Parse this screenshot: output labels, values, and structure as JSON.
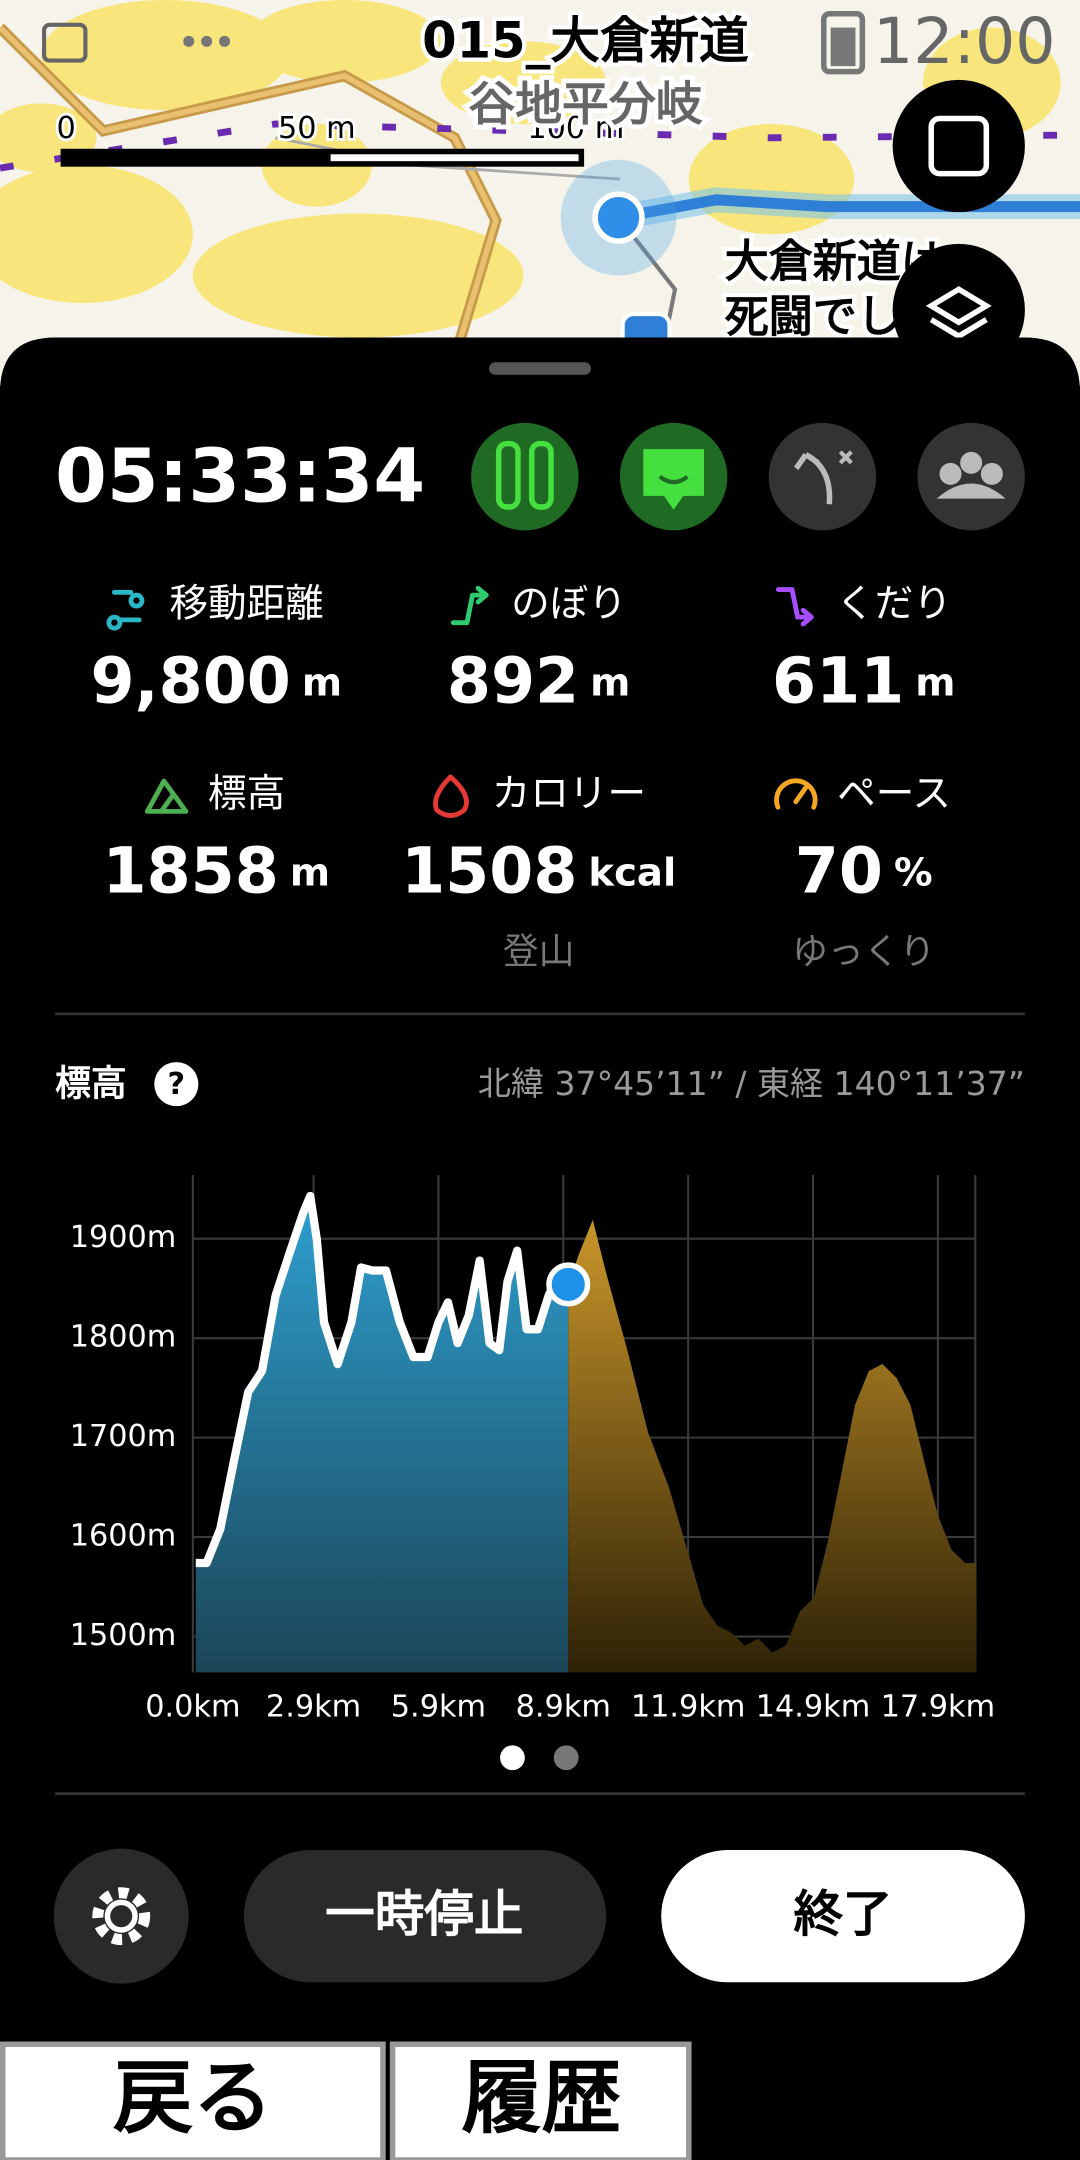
{
  "status_bar": {
    "time": "12:00"
  },
  "map": {
    "title": "015_大倉新道",
    "place_label": "谷地平分岐",
    "note_lines": [
      "大倉新道は",
      "死闘でし"
    ],
    "scale_labels": [
      "0",
      "50 m",
      "100 m"
    ]
  },
  "tracking": {
    "elapsed": "05:33:34",
    "stats": [
      {
        "label": "移動距離",
        "value": "9,800",
        "unit": "m"
      },
      {
        "label": "のぼり",
        "value": "892",
        "unit": "m"
      },
      {
        "label": "くだり",
        "value": "611",
        "unit": "m"
      },
      {
        "label": "標高",
        "value": "1858",
        "unit": "m"
      },
      {
        "label": "カロリー",
        "value": "1508",
        "unit": "kcal",
        "sub": "登山"
      },
      {
        "label": "ペース",
        "value": "70",
        "unit": "%",
        "sub": "ゆっくり"
      }
    ]
  },
  "chart_header": {
    "help": "?",
    "coordinates": "北緯 37°45’11” / 東経 140°11’37”"
  },
  "chart_data": {
    "type": "area",
    "title": "標高",
    "xlim": [
      0,
      18.8
    ],
    "ylim": [
      1464,
      1964
    ],
    "xticks": [
      {
        "value": 0,
        "label": "0.0km"
      },
      {
        "value": 2.9,
        "label": "2.9km"
      },
      {
        "value": 5.9,
        "label": "5.9km"
      },
      {
        "value": 8.9,
        "label": "8.9km"
      },
      {
        "value": 11.9,
        "label": "11.9km"
      },
      {
        "value": 14.9,
        "label": "14.9km"
      },
      {
        "value": 17.9,
        "label": "17.9km"
      }
    ],
    "yticks": [
      {
        "value": 1500,
        "label": "1500m"
      },
      {
        "value": 1600,
        "label": "1600m"
      },
      {
        "value": 1700,
        "label": "1700m"
      },
      {
        "value": 1800,
        "label": "1800m"
      },
      {
        "value": 1900,
        "label": "1900m"
      }
    ],
    "grid": true,
    "series": [
      {
        "color": "#2e9fd0",
        "line_color": "#ffffff",
        "x": [
          0.07,
          0.33,
          0.66,
          0.99,
          1.33,
          1.66,
          1.99,
          2.32,
          2.65,
          2.82,
          2.98,
          3.15,
          3.48,
          3.81,
          4.04,
          4.31,
          4.64,
          4.97,
          5.3,
          5.64,
          5.9,
          6.13,
          6.36,
          6.63,
          6.89,
          7.13,
          7.36,
          7.56,
          7.79,
          8.02,
          8.29,
          8.55,
          8.78,
          9.02
        ],
        "values": [
          1574,
          1574,
          1608,
          1677,
          1746,
          1767,
          1843,
          1885,
          1926,
          1943,
          1899,
          1816,
          1774,
          1816,
          1871,
          1868,
          1868,
          1816,
          1781,
          1781,
          1816,
          1836,
          1795,
          1823,
          1878,
          1795,
          1788,
          1857,
          1888,
          1809,
          1809,
          1843,
          1864,
          1854
        ]
      },
      {
        "color": "#c9952a",
        "x": [
          9.02,
          9.28,
          9.61,
          9.94,
          10.44,
          10.94,
          11.44,
          11.93,
          12.26,
          12.6,
          12.93,
          13.26,
          13.59,
          13.92,
          14.25,
          14.58,
          14.92,
          15.25,
          15.58,
          15.91,
          16.24,
          16.57,
          16.91,
          17.24,
          17.57,
          17.9,
          18.23,
          18.56,
          18.83
        ],
        "values": [
          1854,
          1885,
          1919,
          1864,
          1788,
          1705,
          1650,
          1580,
          1532,
          1511,
          1504,
          1491,
          1498,
          1484,
          1491,
          1525,
          1539,
          1594,
          1663,
          1733,
          1767,
          1774,
          1760,
          1733,
          1677,
          1622,
          1587,
          1574,
          1574
        ]
      }
    ]
  },
  "actions": {
    "pause": "一時停止",
    "finish": "終了"
  },
  "nav": {
    "back": "戻る",
    "history": "履歴"
  }
}
